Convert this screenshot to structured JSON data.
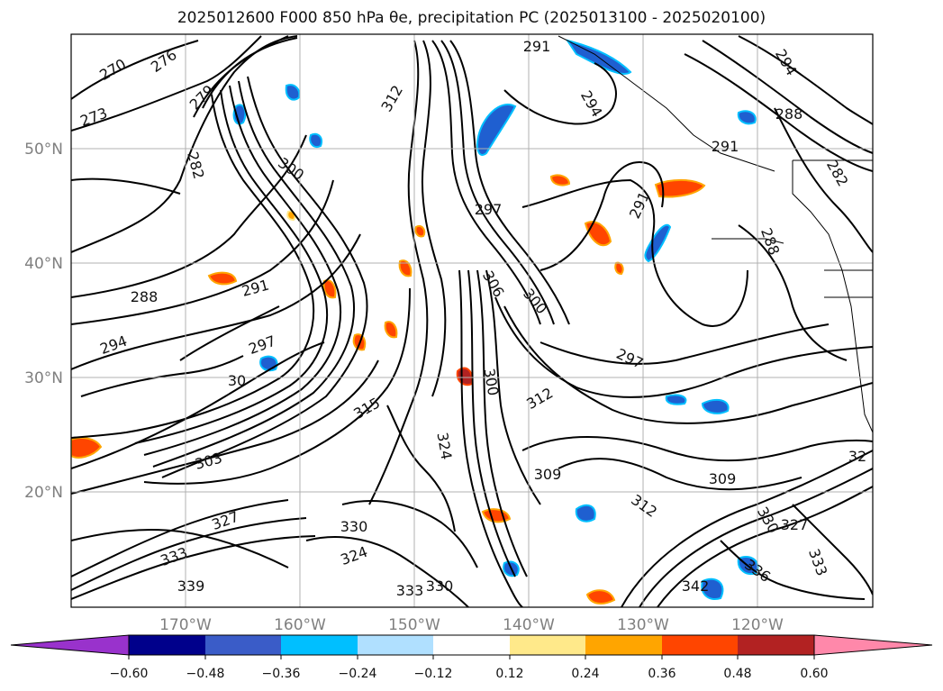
{
  "map": {
    "title": "2025012600 F000 850 hPa θe, precipitation PC (2025013100 - 2025020100)",
    "lat_labels": [
      "50°N",
      "40°N",
      "30°N",
      "20°N"
    ],
    "lon_labels": [
      "170°W",
      "160°W",
      "150°W",
      "140°W",
      "130°W",
      "120°W"
    ],
    "contour_labels": [
      {
        "text": "270",
        "rot": -30
      },
      {
        "text": "276",
        "rot": -35
      },
      {
        "text": "279",
        "rot": -45
      },
      {
        "text": "273",
        "rot": -20
      },
      {
        "text": "282",
        "rot": 75
      },
      {
        "text": "300",
        "rot": 35
      },
      {
        "text": "291",
        "rot": 0
      },
      {
        "text": "297",
        "rot": 0
      },
      {
        "text": "291",
        "rot": -65
      },
      {
        "text": "288",
        "rot": 0
      },
      {
        "text": "291",
        "rot": -15
      },
      {
        "text": "294",
        "rot": -20
      },
      {
        "text": "297",
        "rot": -20
      },
      {
        "text": "306",
        "rot": 60
      },
      {
        "text": "300",
        "rot": 50
      },
      {
        "text": "297",
        "rot": 25
      },
      {
        "text": "300",
        "rot": 80
      },
      {
        "text": "312",
        "rot": -30
      },
      {
        "text": "315",
        "rot": -30
      },
      {
        "text": "324",
        "rot": 80
      },
      {
        "text": "309",
        "rot": 0
      },
      {
        "text": "309",
        "rot": 0
      },
      {
        "text": "303",
        "rot": -15
      },
      {
        "text": "312",
        "rot": 35
      },
      {
        "text": "330",
        "rot": 0
      },
      {
        "text": "324",
        "rot": -20
      },
      {
        "text": "327",
        "rot": -20
      },
      {
        "text": "333",
        "rot": -20
      },
      {
        "text": "339",
        "rot": 0
      },
      {
        "text": "333",
        "rot": 0
      },
      {
        "text": "330",
        "rot": 0
      },
      {
        "text": "336",
        "rot": 35
      },
      {
        "text": "342",
        "rot": 0
      },
      {
        "text": "330",
        "rot": 60
      },
      {
        "text": "327",
        "rot": 0
      },
      {
        "text": "333",
        "rot": 70
      },
      {
        "text": "288",
        "rot": 70
      },
      {
        "text": "282",
        "rot": 60
      },
      {
        "text": "294",
        "rot": 60
      },
      {
        "text": "288",
        "rot": 0
      },
      {
        "text": "291",
        "rot": 0
      },
      {
        "text": "294",
        "rot": 60
      },
      {
        "text": "312",
        "rot": -60
      },
      {
        "text": "30",
        "rot": 0
      },
      {
        "text": "32",
        "rot": 0
      }
    ]
  },
  "colorbar": {
    "ticks": [
      "−0.60",
      "−0.48",
      "−0.36",
      "−0.24",
      "−0.12",
      "0.12",
      "0.24",
      "0.36",
      "0.48",
      "0.60"
    ],
    "colors": [
      "#9932cc",
      "#00008b",
      "#3a5cc8",
      "#00bfff",
      "#b0e0ff",
      "#ffffff",
      "#ffe98a",
      "#ffa500",
      "#ff4500",
      "#b22222",
      "#ff88aa"
    ]
  }
}
